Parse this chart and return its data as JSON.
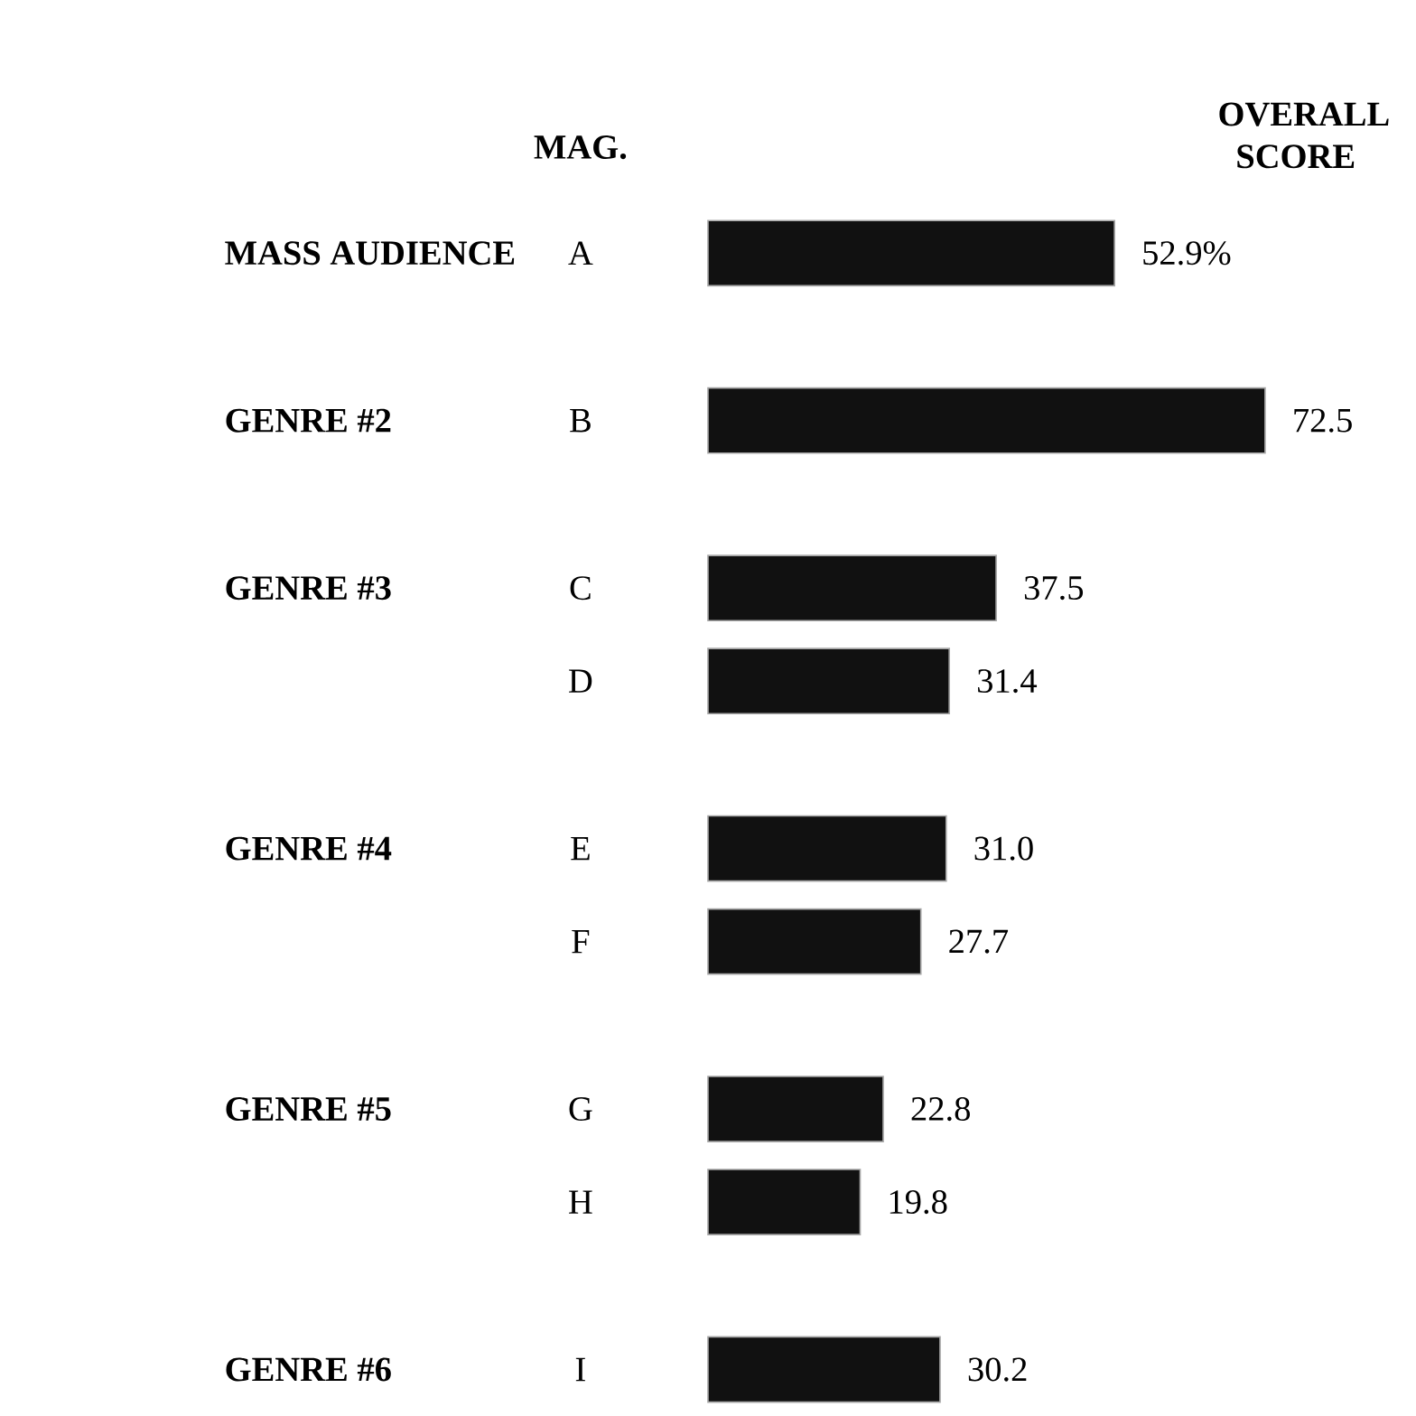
{
  "chart_data": {
    "type": "bar",
    "orientation": "horizontal",
    "xlabel": "OVERALL SCORE",
    "ylabel": "MAG.",
    "categories": [
      "A",
      "B",
      "C",
      "D",
      "E",
      "F",
      "G",
      "H",
      "I"
    ],
    "values": [
      52.9,
      72.5,
      37.5,
      31.4,
      31.0,
      27.7,
      22.8,
      19.8,
      30.2
    ],
    "value_labels": [
      "52.9%",
      "72.5",
      "37.5",
      "31.4",
      "31.0",
      "27.7",
      "22.8",
      "19.8",
      "30.2"
    ],
    "color": "#111111",
    "annotations": [
      "MASS AUDIENCE",
      "GENRE #2",
      "GENRE #3",
      "GENRE #4",
      "GENRE #5",
      "GENRE #6"
    ]
  }
}
